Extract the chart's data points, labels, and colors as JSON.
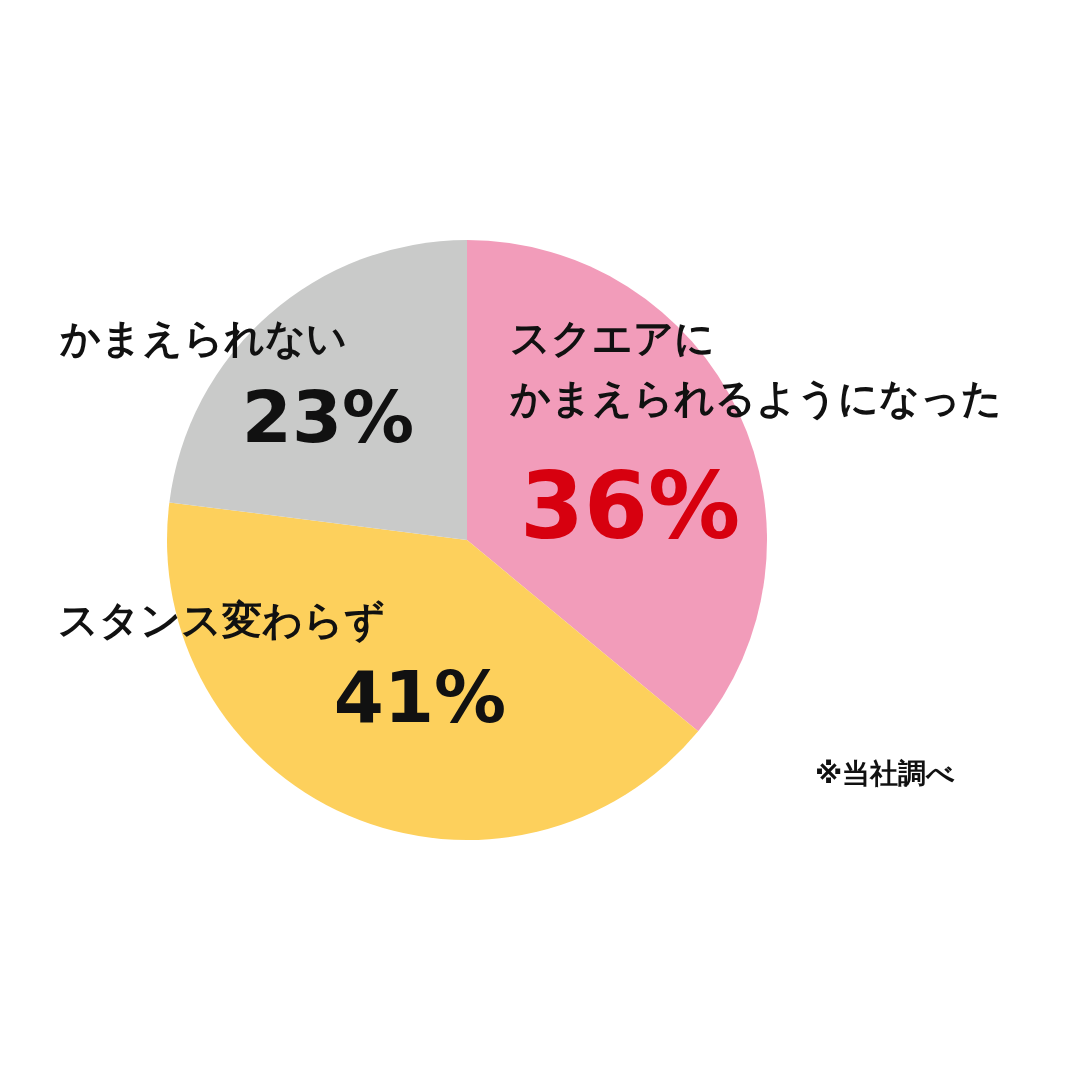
{
  "chart_data": {
    "type": "pie",
    "categories": [
      "スクエアにかまえられるようになった",
      "スタンス変わらず",
      "かまえられない"
    ],
    "values": [
      36,
      41,
      23
    ],
    "colors": [
      "#f29cba",
      "#fdd05c",
      "#c9cac9"
    ],
    "value_labels": [
      "36%",
      "41%",
      "23%"
    ],
    "annotations": [
      "※当社調べ"
    ]
  }
}
